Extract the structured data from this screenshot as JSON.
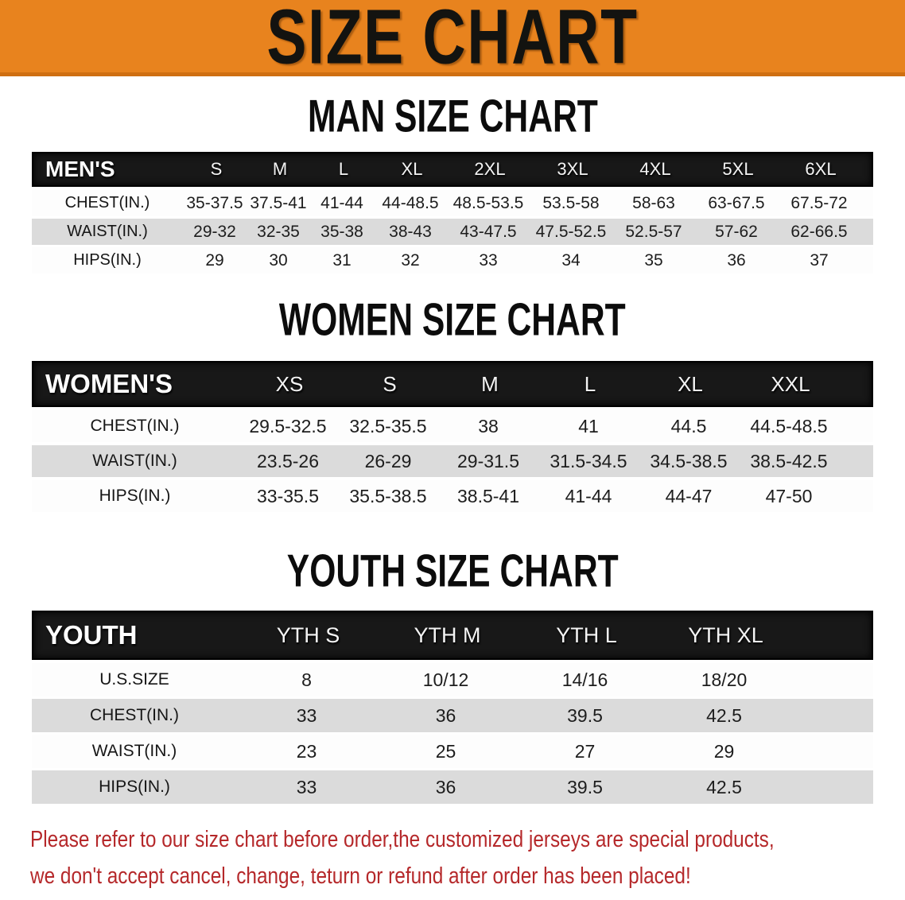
{
  "banner": {
    "title": "SIZE CHART"
  },
  "colors": {
    "banner_orange": "#E8831E",
    "band_black": "#181818",
    "row_gray": "#DBDBDB",
    "warning_red": "#B5282A"
  },
  "sections": [
    {
      "title": "MAN SIZE CHART",
      "table": {
        "name": "mens",
        "header_label": "MEN'S",
        "columns": [
          "S",
          "M",
          "L",
          "XL",
          "2XL",
          "3XL",
          "4XL",
          "5XL",
          "6XL"
        ],
        "rows": [
          {
            "label": "CHEST(IN.)",
            "values": [
              "35-37.5",
              "37.5-41",
              "41-44",
              "44-48.5",
              "48.5-53.5",
              "53.5-58",
              "58-63",
              "63-67.5",
              "67.5-72"
            ]
          },
          {
            "label": "WAIST(IN.)",
            "values": [
              "29-32",
              "32-35",
              "35-38",
              "38-43",
              "43-47.5",
              "47.5-52.5",
              "52.5-57",
              "57-62",
              "62-66.5"
            ]
          },
          {
            "label": "HIPS(IN.)",
            "values": [
              "29",
              "30",
              "31",
              "32",
              "33",
              "34",
              "35",
              "36",
              "37"
            ]
          }
        ]
      }
    },
    {
      "title": "WOMEN SIZE CHART",
      "table": {
        "name": "womens",
        "header_label": "WOMEN'S",
        "columns": [
          "XS",
          "S",
          "M",
          "L",
          "XL",
          "XXL"
        ],
        "rows": [
          {
            "label": "CHEST(IN.)",
            "values": [
              "29.5-32.5",
              "32.5-35.5",
              "38",
              "41",
              "44.5",
              "44.5-48.5"
            ]
          },
          {
            "label": "WAIST(IN.)",
            "values": [
              "23.5-26",
              "26-29",
              "29-31.5",
              "31.5-34.5",
              "34.5-38.5",
              "38.5-42.5"
            ]
          },
          {
            "label": "HIPS(IN.)",
            "values": [
              "33-35.5",
              "35.5-38.5",
              "38.5-41",
              "41-44",
              "44-47",
              "47-50"
            ]
          }
        ]
      }
    },
    {
      "title": "YOUTH SIZE CHART",
      "table": {
        "name": "youth",
        "header_label": "YOUTH",
        "columns": [
          "YTH S",
          "YTH M",
          "YTH L",
          "YTH XL"
        ],
        "rows": [
          {
            "label": "U.S.SIZE",
            "values": [
              "8",
              "10/12",
              "14/16",
              "18/20"
            ]
          },
          {
            "label": "CHEST(IN.)",
            "values": [
              "33",
              "36",
              "39.5",
              "42.5"
            ]
          },
          {
            "label": "WAIST(IN.)",
            "values": [
              "23",
              "25",
              "27",
              "29"
            ]
          },
          {
            "label": "HIPS(IN.)",
            "values": [
              "33",
              "36",
              "39.5",
              "42.5"
            ]
          }
        ]
      }
    }
  ],
  "disclaimer": {
    "line1": "Please refer to our size chart before order,the customized jerseys are special products,",
    "line2": "we don't accept cancel, change, teturn or refund after order has been placed!"
  }
}
